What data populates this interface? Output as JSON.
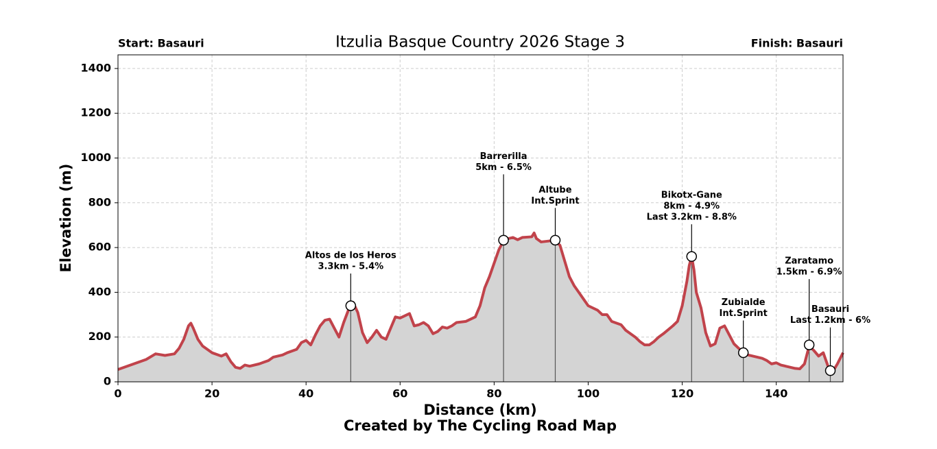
{
  "chart_data": {
    "type": "area-line",
    "title": "Itzulia Basque Country 2026 Stage 3",
    "start_label": "Start: Basauri",
    "finish_label": "Finish: Basauri",
    "xlabel": "Distance (km)",
    "ylabel": "Elevation (m)",
    "footer": "Created by The Cycling Road Map",
    "color": "#c1434b",
    "fill_color": "#d4d4d4",
    "grid": true,
    "xlim": [
      0,
      154.2
    ],
    "ylim": [
      0,
      1461
    ],
    "xticks": [
      0,
      20,
      40,
      60,
      80,
      100,
      120,
      140
    ],
    "yticks": [
      0,
      200,
      400,
      600,
      800,
      1000,
      1200,
      1400
    ],
    "x": [
      0,
      2,
      4,
      6,
      8,
      10,
      12,
      13,
      14,
      15,
      15.5,
      16,
      17,
      18,
      20,
      22,
      23,
      24,
      25,
      26,
      27,
      28,
      30,
      32,
      33,
      35,
      36,
      38,
      39,
      40,
      41,
      42,
      43,
      44,
      45,
      46,
      47,
      48,
      49,
      50,
      51,
      52,
      53,
      54,
      55,
      56,
      57,
      58,
      59,
      60,
      61,
      62,
      63,
      64,
      65,
      66,
      67,
      68,
      69,
      70,
      71,
      72,
      74,
      76,
      77,
      78,
      79,
      80,
      81,
      82,
      83,
      84,
      85,
      86,
      88,
      88.5,
      89,
      90,
      92,
      93,
      94,
      95,
      96,
      97,
      98,
      99,
      100,
      102,
      103,
      104,
      105,
      107,
      108,
      110,
      111,
      112,
      113,
      114,
      115,
      116,
      118,
      119,
      120,
      121,
      121.5,
      122,
      122.5,
      123,
      124,
      125,
      126,
      127,
      128,
      129,
      130,
      131,
      132,
      133,
      134,
      135,
      136,
      137,
      138,
      139,
      140,
      141,
      142,
      143,
      144,
      145,
      146,
      147,
      148,
      149,
      150,
      151,
      151.5,
      152,
      153,
      154.2
    ],
    "values": [
      55,
      70,
      85,
      100,
      125,
      118,
      125,
      150,
      190,
      250,
      262,
      240,
      190,
      160,
      130,
      115,
      125,
      90,
      65,
      60,
      75,
      70,
      80,
      95,
      110,
      120,
      130,
      145,
      175,
      185,
      165,
      210,
      250,
      275,
      280,
      240,
      200,
      265,
      320,
      355,
      310,
      220,
      175,
      200,
      230,
      200,
      190,
      240,
      290,
      285,
      295,
      305,
      250,
      255,
      265,
      250,
      215,
      225,
      245,
      240,
      250,
      265,
      270,
      290,
      340,
      420,
      470,
      530,
      590,
      630,
      640,
      645,
      635,
      645,
      648,
      665,
      640,
      625,
      630,
      630,
      610,
      540,
      470,
      430,
      400,
      370,
      340,
      320,
      300,
      300,
      270,
      255,
      230,
      200,
      180,
      165,
      165,
      180,
      200,
      215,
      250,
      270,
      340,
      450,
      520,
      560,
      500,
      400,
      330,
      220,
      160,
      170,
      240,
      250,
      210,
      170,
      150,
      130,
      120,
      115,
      110,
      105,
      95,
      80,
      85,
      75,
      70,
      65,
      60,
      58,
      80,
      160,
      140,
      115,
      130,
      70,
      50,
      45,
      80,
      130
    ],
    "annotations": [
      {
        "label": [
          "Altos de los Heros",
          "3.3km - 5.4%"
        ],
        "x": 49.5,
        "y": 340
      },
      {
        "label": [
          "Barrerilla",
          "5km - 6.5%"
        ],
        "x": 82,
        "y": 633
      },
      {
        "label": [
          "Altube",
          "Int.Sprint"
        ],
        "x": 93,
        "y": 633
      },
      {
        "label": [
          "Bikotx-Gane",
          "8km - 4.9%",
          "Last 3.2km - 8.8%"
        ],
        "x": 122,
        "y": 560
      },
      {
        "label": [
          "Zubialde",
          "Int.Sprint"
        ],
        "x": 133,
        "y": 130
      },
      {
        "label": [
          "Zaratamo",
          "1.5km - 6.9%"
        ],
        "x": 147,
        "y": 165
      },
      {
        "label": [
          "Basauri",
          "Last 1.2km - 6%"
        ],
        "x": 151.5,
        "y": 50
      }
    ]
  }
}
